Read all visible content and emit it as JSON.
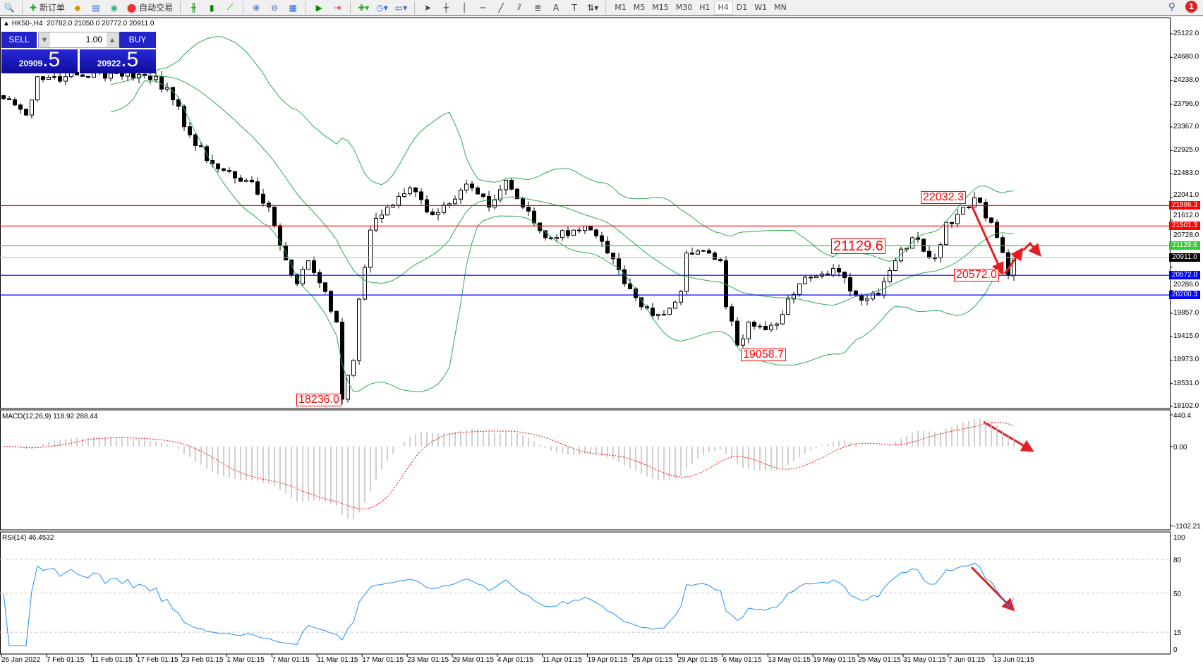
{
  "toolbar": {
    "new_order": "新订单",
    "auto_trading": "自动交易",
    "timeframes": [
      "M1",
      "M5",
      "M15",
      "M30",
      "H1",
      "H4",
      "D1",
      "W1",
      "MN"
    ],
    "active_timeframe": "H4",
    "notifications": "1"
  },
  "chart_header": {
    "symbol": "HK50-,H4",
    "open": "20782.0",
    "high": "21050.0",
    "low": "20772.0",
    "close": "20911.0"
  },
  "trade_panel": {
    "sell_label": "SELL",
    "buy_label": "BUY",
    "lots": "1.00",
    "sell_price_main": "20909",
    "sell_price_frac": ".5",
    "buy_price_main": "20922",
    "buy_price_frac": ".5"
  },
  "price_axis": [
    "25122.0",
    "24680.0",
    "24238.0",
    "23796.0",
    "23367.0",
    "22925.0",
    "22483.0",
    "22041.0",
    "21612.0",
    "20728.0",
    "20286.0",
    "19857.0",
    "19415.0",
    "18973.0",
    "18531.0",
    "18102.0"
  ],
  "price_levels": [
    {
      "value": 21886.3,
      "label": "21886.3",
      "color": "#ff0000"
    },
    {
      "value": 21501.3,
      "label": "21501.3",
      "color": "#ff0000"
    },
    {
      "value": 21129.6,
      "label": "21129.6",
      "color": "#33cc33"
    },
    {
      "value": 20911.0,
      "label": "20911.0",
      "color": "#000000",
      "line": "#c0c0c0"
    },
    {
      "value": 20572.0,
      "label": "20572.0",
      "color": "#0000ff"
    },
    {
      "value": 20200.3,
      "label": "20200.3",
      "color": "#0000ff"
    }
  ],
  "annotations": [
    {
      "text": "18236.0",
      "price": 18236.0
    },
    {
      "text": "19058.7",
      "price": 19058.7
    },
    {
      "text": "21129.6",
      "price": 21129.6
    },
    {
      "text": "22032.3",
      "price": 22032.3
    },
    {
      "text": "20572.0",
      "price": 20572.0
    }
  ],
  "macd": {
    "label": "MACD(12,26,9) 118.92 288.44",
    "axis": [
      "440.4",
      "0.00",
      "-1102.21"
    ]
  },
  "rsi": {
    "label": "RSI(14) 46.4532",
    "axis": [
      "100",
      "80",
      "50",
      "15",
      "0"
    ]
  },
  "time_axis": [
    "26 Jan 2022",
    "7 Feb 01:15",
    "11 Feb 01:15",
    "17 Feb 01:15",
    "23 Feb 01:15",
    "1 Mar 01:15",
    "7 Mar 01:15",
    "11 Mar 01:15",
    "17 Mar 01:15",
    "23 Mar 01:15",
    "29 Mar 01:15",
    "4 Apr 01:15",
    "11 Apr 01:15",
    "19 Apr 01:15",
    "25 Apr 01:15",
    "29 Apr 01:15",
    "6 May 01:15",
    "13 May 01:15",
    "19 May 01:15",
    "25 May 01:15",
    "31 May 01:15",
    "7 Jun 01:15",
    "13 Jun 01:15"
  ],
  "chart_data": {
    "type": "candlestick",
    "symbol": "HK50",
    "timeframe": "H4",
    "ylim": [
      18102,
      25122
    ],
    "price_path": [
      [
        0,
        23900
      ],
      [
        1,
        23881
      ],
      [
        4,
        23592
      ],
      [
        6,
        24315
      ],
      [
        11,
        24315
      ],
      [
        20,
        24387
      ],
      [
        27,
        24315
      ],
      [
        30,
        23881
      ],
      [
        34,
        23014
      ],
      [
        38,
        22580
      ],
      [
        43,
        22364
      ],
      [
        47,
        21858
      ],
      [
        49,
        21135
      ],
      [
        52,
        20412
      ],
      [
        54,
        20846
      ],
      [
        57,
        20268
      ],
      [
        59,
        19690
      ],
      [
        60,
        18236
      ],
      [
        62,
        18967
      ],
      [
        63,
        20123
      ],
      [
        65,
        21424
      ],
      [
        68,
        21858
      ],
      [
        72,
        22219
      ],
      [
        76,
        21713
      ],
      [
        82,
        22291
      ],
      [
        86,
        21858
      ],
      [
        89,
        22364
      ],
      [
        92,
        21858
      ],
      [
        96,
        21280
      ],
      [
        101,
        21424
      ],
      [
        103,
        21500
      ],
      [
        107,
        20991
      ],
      [
        110,
        20412
      ],
      [
        113,
        19979
      ],
      [
        117,
        19834
      ],
      [
        120,
        20268
      ],
      [
        121,
        20991
      ],
      [
        125,
        20991
      ],
      [
        127,
        20846
      ],
      [
        128,
        19979
      ],
      [
        130,
        19256
      ],
      [
        132,
        19690
      ],
      [
        135,
        19545
      ],
      [
        138,
        19834
      ],
      [
        141,
        20412
      ],
      [
        144,
        20557
      ],
      [
        147,
        20700
      ],
      [
        151,
        20196
      ],
      [
        155,
        20196
      ],
      [
        158,
        20846
      ],
      [
        161,
        21280
      ],
      [
        165,
        20900
      ],
      [
        167,
        21569
      ],
      [
        171,
        21858
      ],
      [
        172,
        22032
      ],
      [
        175,
        21569
      ],
      [
        177,
        21000
      ],
      [
        178,
        20572
      ],
      [
        179,
        20911
      ]
    ],
    "overlays": [
      "Bollinger Bands"
    ],
    "indicators": [
      "MACD(12,26,9)",
      "RSI(14)"
    ]
  }
}
